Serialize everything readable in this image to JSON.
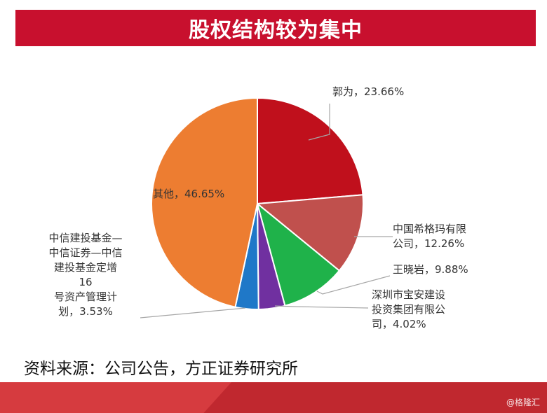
{
  "header": {
    "title": "股权结构较为集中"
  },
  "chart_data": {
    "type": "pie",
    "slices": [
      {
        "name": "郭为",
        "value": 23.66,
        "label_lines": [
          "郭为，23.66%"
        ],
        "color": "#c0101c"
      },
      {
        "name": "中国希格玛有限公司",
        "value": 12.26,
        "label_lines": [
          "中国希格玛有限",
          "公司，12.26%"
        ],
        "color": "#c0504d"
      },
      {
        "name": "王晓岩",
        "value": 9.88,
        "label_lines": [
          "王晓岩，9.88%"
        ],
        "color": "#1fb24a"
      },
      {
        "name": "深圳市宝安建设投资集团有限公司",
        "value": 4.02,
        "label_lines": [
          "深圳市宝安建设",
          "投资集团有限公",
          "司，4.02%"
        ],
        "color": "#7030a0"
      },
      {
        "name": "中信建投基金—中信证券—中信建投基金定增16号资产管理计划",
        "value": 3.53,
        "label_lines": [
          "中信建投基金—",
          "中信证券—中信",
          "建投基金定增",
          "16",
          "号资产管理计",
          "划，3.53%"
        ],
        "color": "#1f78c8"
      },
      {
        "name": "其他",
        "value": 46.65,
        "label_lines": [
          "其他，46.65%"
        ],
        "color": "#ed7d31"
      }
    ]
  },
  "source": {
    "text": "资料来源：公司公告，方正证券研究所"
  },
  "watermark": {
    "text": "@格隆汇"
  }
}
